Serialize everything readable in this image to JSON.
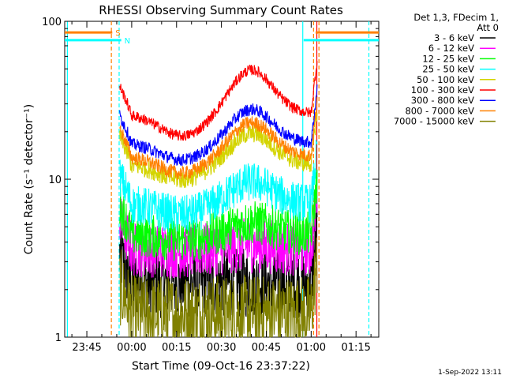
{
  "chart_data": {
    "type": "line",
    "title": "RHESSI Observing Summary Count Rates",
    "xlabel": "Start Time (09-Oct-16 23:37:22)",
    "ylabel": "Count Rate (s⁻¹ detector⁻¹)",
    "y_scale": "log",
    "ylim": [
      1,
      100
    ],
    "xlim_minutes": [
      -22.4,
      82.6
    ],
    "x_ticks": [
      {
        "value": -15,
        "label": "23:45"
      },
      {
        "value": 0,
        "label": "00:00"
      },
      {
        "value": 15,
        "label": "00:15"
      },
      {
        "value": 30,
        "label": "00:30"
      },
      {
        "value": 45,
        "label": "00:45"
      },
      {
        "value": 60,
        "label": "01:00"
      },
      {
        "value": 75,
        "label": "01:15"
      }
    ],
    "y_ticks": [
      {
        "value": 1,
        "label": "1"
      },
      {
        "value": 10,
        "label": "10"
      },
      {
        "value": 100,
        "label": "100"
      }
    ],
    "legend_header": [
      "Det 1,3, FDecim 1,",
      "Att 0"
    ],
    "legend_position": "right",
    "data_start_min": -4,
    "data_end_min": 62,
    "series": [
      {
        "name": "3 - 6 keV",
        "color": "#000000",
        "base": 2.2,
        "noise": 0.45,
        "hump": 1.0
      },
      {
        "name": "6 - 12 keV",
        "color": "#ff00ff",
        "base": 3.6,
        "noise": 0.35,
        "hump": 1.05
      },
      {
        "name": "12 - 25 keV",
        "color": "#00ff00",
        "base": 4.5,
        "noise": 0.28,
        "hump": 1.15
      },
      {
        "name": "25 - 50 keV",
        "color": "#00ffff",
        "base": 7.0,
        "noise": 0.25,
        "hump": 1.3
      },
      {
        "name": "50 - 100 keV",
        "color": "#d4d400",
        "base": 12.5,
        "noise": 0.12,
        "hump": 1.45
      },
      {
        "name": "100 - 300 keV",
        "color": "#ff0000",
        "base": 26,
        "noise": 0.07,
        "hump": 1.7
      },
      {
        "name": "300 - 800 keV",
        "color": "#0000ff",
        "base": 17,
        "noise": 0.08,
        "hump": 1.5
      },
      {
        "name": "800 - 7000 keV",
        "color": "#ff8000",
        "base": 14,
        "noise": 0.09,
        "hump": 1.5
      },
      {
        "name": "7000 - 15000 keV",
        "color": "#808000",
        "base": 1.4,
        "noise": 0.5,
        "hump": 1.0
      }
    ],
    "flags": [
      {
        "label": "S",
        "color": "#ff8000",
        "value": 85,
        "segments": [
          [
            -22.4,
            -6.5
          ],
          [
            61.5,
            82.6
          ]
        ]
      },
      {
        "label": "N",
        "color": "#00ffff",
        "value": 76,
        "segments": [
          [
            -22.4,
            -3.5
          ],
          [
            57.5,
            82.6
          ]
        ]
      }
    ],
    "vlines": [
      {
        "value": -21.5,
        "color": "#00ffff",
        "dash": false
      },
      {
        "value": -6.8,
        "color": "#ff8000",
        "dash": true
      },
      {
        "value": -4.2,
        "color": "#00ffff",
        "dash": true
      },
      {
        "value": 57.2,
        "color": "#00ffff",
        "dash": false
      },
      {
        "value": 60.8,
        "color": "#ff8000",
        "dash": true
      },
      {
        "value": 61.9,
        "color": "#ff0000",
        "dash": false
      },
      {
        "value": 62.6,
        "color": "#ff8000",
        "dash": true
      },
      {
        "value": 79.3,
        "color": "#00ffff",
        "dash": true
      }
    ]
  },
  "timestamp": "1-Sep-2022 13:11"
}
